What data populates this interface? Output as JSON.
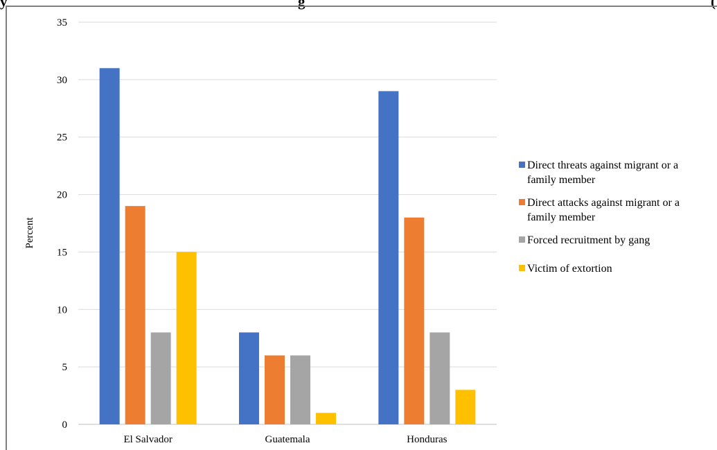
{
  "header": {
    "left": "y",
    "mid": "g",
    "right": "("
  },
  "chart_data": {
    "type": "bar",
    "categories": [
      "El Salvador",
      "Guatemala",
      "Honduras"
    ],
    "series": [
      {
        "name": "Direct threats against migrant or a family member",
        "legend_lines": [
          "Direct threats against migrant or a",
          "family member"
        ],
        "color": "#4472c4",
        "values": [
          31,
          8,
          29
        ]
      },
      {
        "name": "Direct attacks against migrant or a family member",
        "legend_lines": [
          "Direct attacks against migrant or a",
          "family member"
        ],
        "color": "#ed7d31",
        "values": [
          19,
          6,
          18
        ]
      },
      {
        "name": "Forced recruitment by gang",
        "legend_lines": [
          "Forced recruitment by gang"
        ],
        "color": "#a5a5a5",
        "values": [
          8,
          6,
          8
        ]
      },
      {
        "name": "Victim of extortion",
        "legend_lines": [
          "Victim of extortion"
        ],
        "color": "#ffc000",
        "values": [
          15,
          1,
          3
        ]
      }
    ],
    "ylabel": "Percent",
    "ylim": [
      0,
      35
    ],
    "yticks": [
      "0",
      "5",
      "10",
      "15",
      "20",
      "25",
      "30",
      "35"
    ],
    "grid": true,
    "legend": "right"
  }
}
